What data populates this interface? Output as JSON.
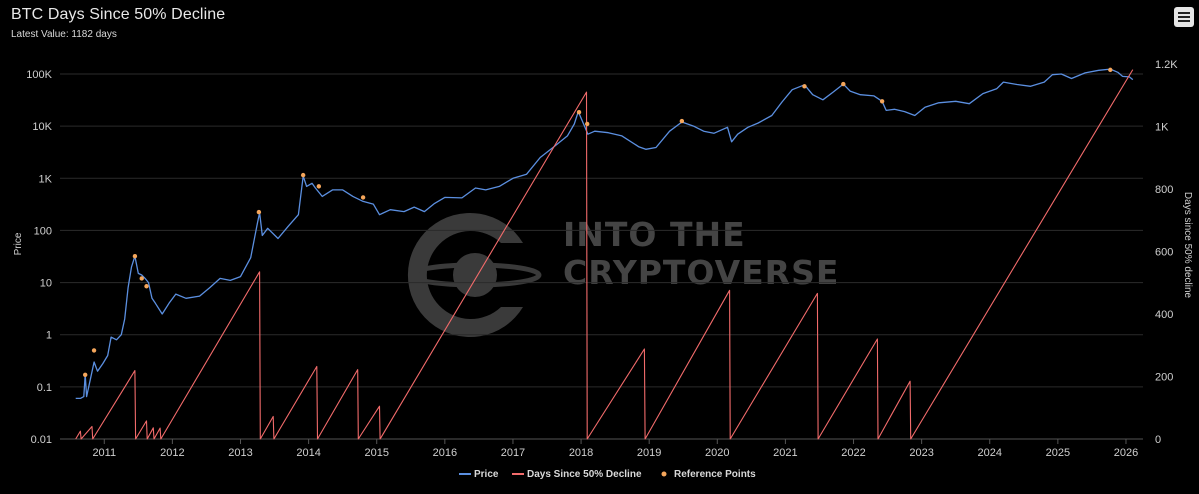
{
  "header": {
    "title": "BTC Days Since 50% Decline",
    "subtitle": "Latest Value: 1182 days"
  },
  "watermark": {
    "line1": "INTO THE",
    "line2": "CRYPTOVERSE"
  },
  "menu": {
    "icon": "hamburger-menu-icon"
  },
  "colors": {
    "background": "#000000",
    "price": "#5b8fe0",
    "days": "#f26b6b",
    "reference": "#f5a65b",
    "grid": "#2b2b2b"
  },
  "chart_data": {
    "type": "line",
    "title": "BTC Days Since 50% Decline",
    "subtitle": "Latest Value: 1182 days",
    "x_axis": {
      "ticks": [
        "2011",
        "2012",
        "2013",
        "2014",
        "2015",
        "2016",
        "2017",
        "2018",
        "2019",
        "2020",
        "2021",
        "2022",
        "2023",
        "2024",
        "2025",
        "2026"
      ],
      "range": [
        "2010-07",
        "2026-03"
      ]
    },
    "y_axis_left": {
      "label": "Price",
      "scale": "log",
      "ticks": [
        "0.01",
        "0.1",
        "1",
        "10",
        "100",
        "1K",
        "10K",
        "100K"
      ],
      "range": [
        0.01,
        150000
      ]
    },
    "y_axis_right": {
      "label": "Days since 50% decline",
      "scale": "linear",
      "ticks": [
        "0",
        "200",
        "400",
        "600",
        "800",
        "1K",
        "1.2K"
      ],
      "range": [
        0,
        1200
      ]
    },
    "grid": true,
    "legend": {
      "placement": "bottom-center",
      "items": [
        "Price",
        "Days Since 50% Decline",
        "Reference Points"
      ]
    },
    "series": [
      {
        "name": "Price",
        "axis": "left",
        "points": [
          [
            2010.58,
            0.06
          ],
          [
            2010.65,
            0.06
          ],
          [
            2010.7,
            0.065
          ],
          [
            2010.72,
            0.17
          ],
          [
            2010.74,
            0.065
          ],
          [
            2010.8,
            0.15
          ],
          [
            2010.85,
            0.3
          ],
          [
            2010.9,
            0.2
          ],
          [
            2010.98,
            0.28
          ],
          [
            2011.05,
            0.4
          ],
          [
            2011.1,
            0.9
          ],
          [
            2011.18,
            0.8
          ],
          [
            2011.25,
            1.0
          ],
          [
            2011.3,
            2.0
          ],
          [
            2011.35,
            8
          ],
          [
            2011.4,
            20
          ],
          [
            2011.45,
            32
          ],
          [
            2011.5,
            15
          ],
          [
            2011.55,
            14
          ],
          [
            2011.6,
            12
          ],
          [
            2011.65,
            10
          ],
          [
            2011.7,
            5
          ],
          [
            2011.75,
            4
          ],
          [
            2011.85,
            2.5
          ],
          [
            2011.95,
            4
          ],
          [
            2012.05,
            6
          ],
          [
            2012.2,
            5
          ],
          [
            2012.4,
            5.5
          ],
          [
            2012.55,
            8
          ],
          [
            2012.7,
            12
          ],
          [
            2012.85,
            11
          ],
          [
            2013.0,
            13
          ],
          [
            2013.15,
            30
          ],
          [
            2013.25,
            140
          ],
          [
            2013.28,
            220
          ],
          [
            2013.32,
            80
          ],
          [
            2013.4,
            110
          ],
          [
            2013.55,
            70
          ],
          [
            2013.7,
            120
          ],
          [
            2013.85,
            200
          ],
          [
            2013.92,
            1100
          ],
          [
            2013.97,
            700
          ],
          [
            2014.05,
            800
          ],
          [
            2014.1,
            650
          ],
          [
            2014.2,
            450
          ],
          [
            2014.35,
            600
          ],
          [
            2014.5,
            600
          ],
          [
            2014.65,
            450
          ],
          [
            2014.8,
            360
          ],
          [
            2014.95,
            320
          ],
          [
            2015.04,
            200
          ],
          [
            2015.2,
            250
          ],
          [
            2015.4,
            230
          ],
          [
            2015.55,
            280
          ],
          [
            2015.7,
            230
          ],
          [
            2015.85,
            330
          ],
          [
            2016.0,
            430
          ],
          [
            2016.25,
            420
          ],
          [
            2016.45,
            650
          ],
          [
            2016.6,
            600
          ],
          [
            2016.8,
            700
          ],
          [
            2017.0,
            1000
          ],
          [
            2017.2,
            1200
          ],
          [
            2017.4,
            2500
          ],
          [
            2017.6,
            4000
          ],
          [
            2017.8,
            6500
          ],
          [
            2017.9,
            11000
          ],
          [
            2017.96,
            19000
          ],
          [
            2018.05,
            10000
          ],
          [
            2018.1,
            7000
          ],
          [
            2018.2,
            8000
          ],
          [
            2018.4,
            7500
          ],
          [
            2018.6,
            6500
          ],
          [
            2018.85,
            4000
          ],
          [
            2018.95,
            3600
          ],
          [
            2019.1,
            3900
          ],
          [
            2019.3,
            8000
          ],
          [
            2019.48,
            12000
          ],
          [
            2019.65,
            10000
          ],
          [
            2019.8,
            8000
          ],
          [
            2019.95,
            7300
          ],
          [
            2020.15,
            9500
          ],
          [
            2020.21,
            5000
          ],
          [
            2020.3,
            7000
          ],
          [
            2020.45,
            9500
          ],
          [
            2020.6,
            11500
          ],
          [
            2020.8,
            16000
          ],
          [
            2020.95,
            29000
          ],
          [
            2021.1,
            50000
          ],
          [
            2021.28,
            62000
          ],
          [
            2021.4,
            40000
          ],
          [
            2021.55,
            32000
          ],
          [
            2021.7,
            45000
          ],
          [
            2021.85,
            64000
          ],
          [
            2021.95,
            47000
          ],
          [
            2022.1,
            40000
          ],
          [
            2022.3,
            38000
          ],
          [
            2022.42,
            30000
          ],
          [
            2022.48,
            20000
          ],
          [
            2022.6,
            21000
          ],
          [
            2022.75,
            19000
          ],
          [
            2022.9,
            16000
          ],
          [
            2023.05,
            23000
          ],
          [
            2023.25,
            28000
          ],
          [
            2023.5,
            30000
          ],
          [
            2023.7,
            27000
          ],
          [
            2023.9,
            42000
          ],
          [
            2024.1,
            52000
          ],
          [
            2024.2,
            70000
          ],
          [
            2024.4,
            63000
          ],
          [
            2024.6,
            58000
          ],
          [
            2024.8,
            70000
          ],
          [
            2024.92,
            97000
          ],
          [
            2025.05,
            100000
          ],
          [
            2025.2,
            82000
          ],
          [
            2025.4,
            105000
          ],
          [
            2025.6,
            118000
          ],
          [
            2025.77,
            124000
          ],
          [
            2025.88,
            108000
          ],
          [
            2025.95,
            90000
          ],
          [
            2026.05,
            88000
          ],
          [
            2026.1,
            78000
          ]
        ]
      },
      {
        "name": "Days Since 50% Decline",
        "axis": "right",
        "points": [
          [
            2010.58,
            0
          ],
          [
            2010.65,
            25
          ],
          [
            2010.66,
            0
          ],
          [
            2010.82,
            40
          ],
          [
            2010.83,
            0
          ],
          [
            2011.45,
            219
          ],
          [
            2011.46,
            0
          ],
          [
            2011.62,
            58
          ],
          [
            2011.63,
            0
          ],
          [
            2011.72,
            36
          ],
          [
            2011.73,
            0
          ],
          [
            2011.82,
            35
          ],
          [
            2011.83,
            0
          ],
          [
            2013.28,
            535
          ],
          [
            2013.29,
            0
          ],
          [
            2013.48,
            72
          ],
          [
            2013.49,
            0
          ],
          [
            2014.12,
            232
          ],
          [
            2014.13,
            0
          ],
          [
            2014.72,
            222
          ],
          [
            2014.73,
            0
          ],
          [
            2015.04,
            105
          ],
          [
            2015.05,
            0
          ],
          [
            2018.08,
            1110
          ],
          [
            2018.09,
            0
          ],
          [
            2018.93,
            288
          ],
          [
            2018.94,
            0
          ],
          [
            2020.18,
            476
          ],
          [
            2020.19,
            0
          ],
          [
            2021.47,
            466
          ],
          [
            2021.48,
            0
          ],
          [
            2022.35,
            320
          ],
          [
            2022.36,
            0
          ],
          [
            2022.83,
            185
          ],
          [
            2022.84,
            0
          ],
          [
            2026.1,
            1182
          ]
        ]
      },
      {
        "name": "Reference Points",
        "axis": "left",
        "type": "scatter",
        "points": [
          [
            2010.72,
            0.17
          ],
          [
            2010.85,
            0.5
          ],
          [
            2011.45,
            32
          ],
          [
            2011.55,
            12
          ],
          [
            2011.62,
            8.5
          ],
          [
            2013.27,
            225
          ],
          [
            2013.92,
            1150
          ],
          [
            2014.15,
            700
          ],
          [
            2014.8,
            430
          ],
          [
            2017.97,
            18500
          ],
          [
            2018.09,
            11000
          ],
          [
            2019.48,
            12500
          ],
          [
            2021.28,
            58000
          ],
          [
            2021.85,
            64000
          ],
          [
            2022.42,
            30000
          ],
          [
            2025.77,
            120000
          ]
        ]
      }
    ]
  }
}
